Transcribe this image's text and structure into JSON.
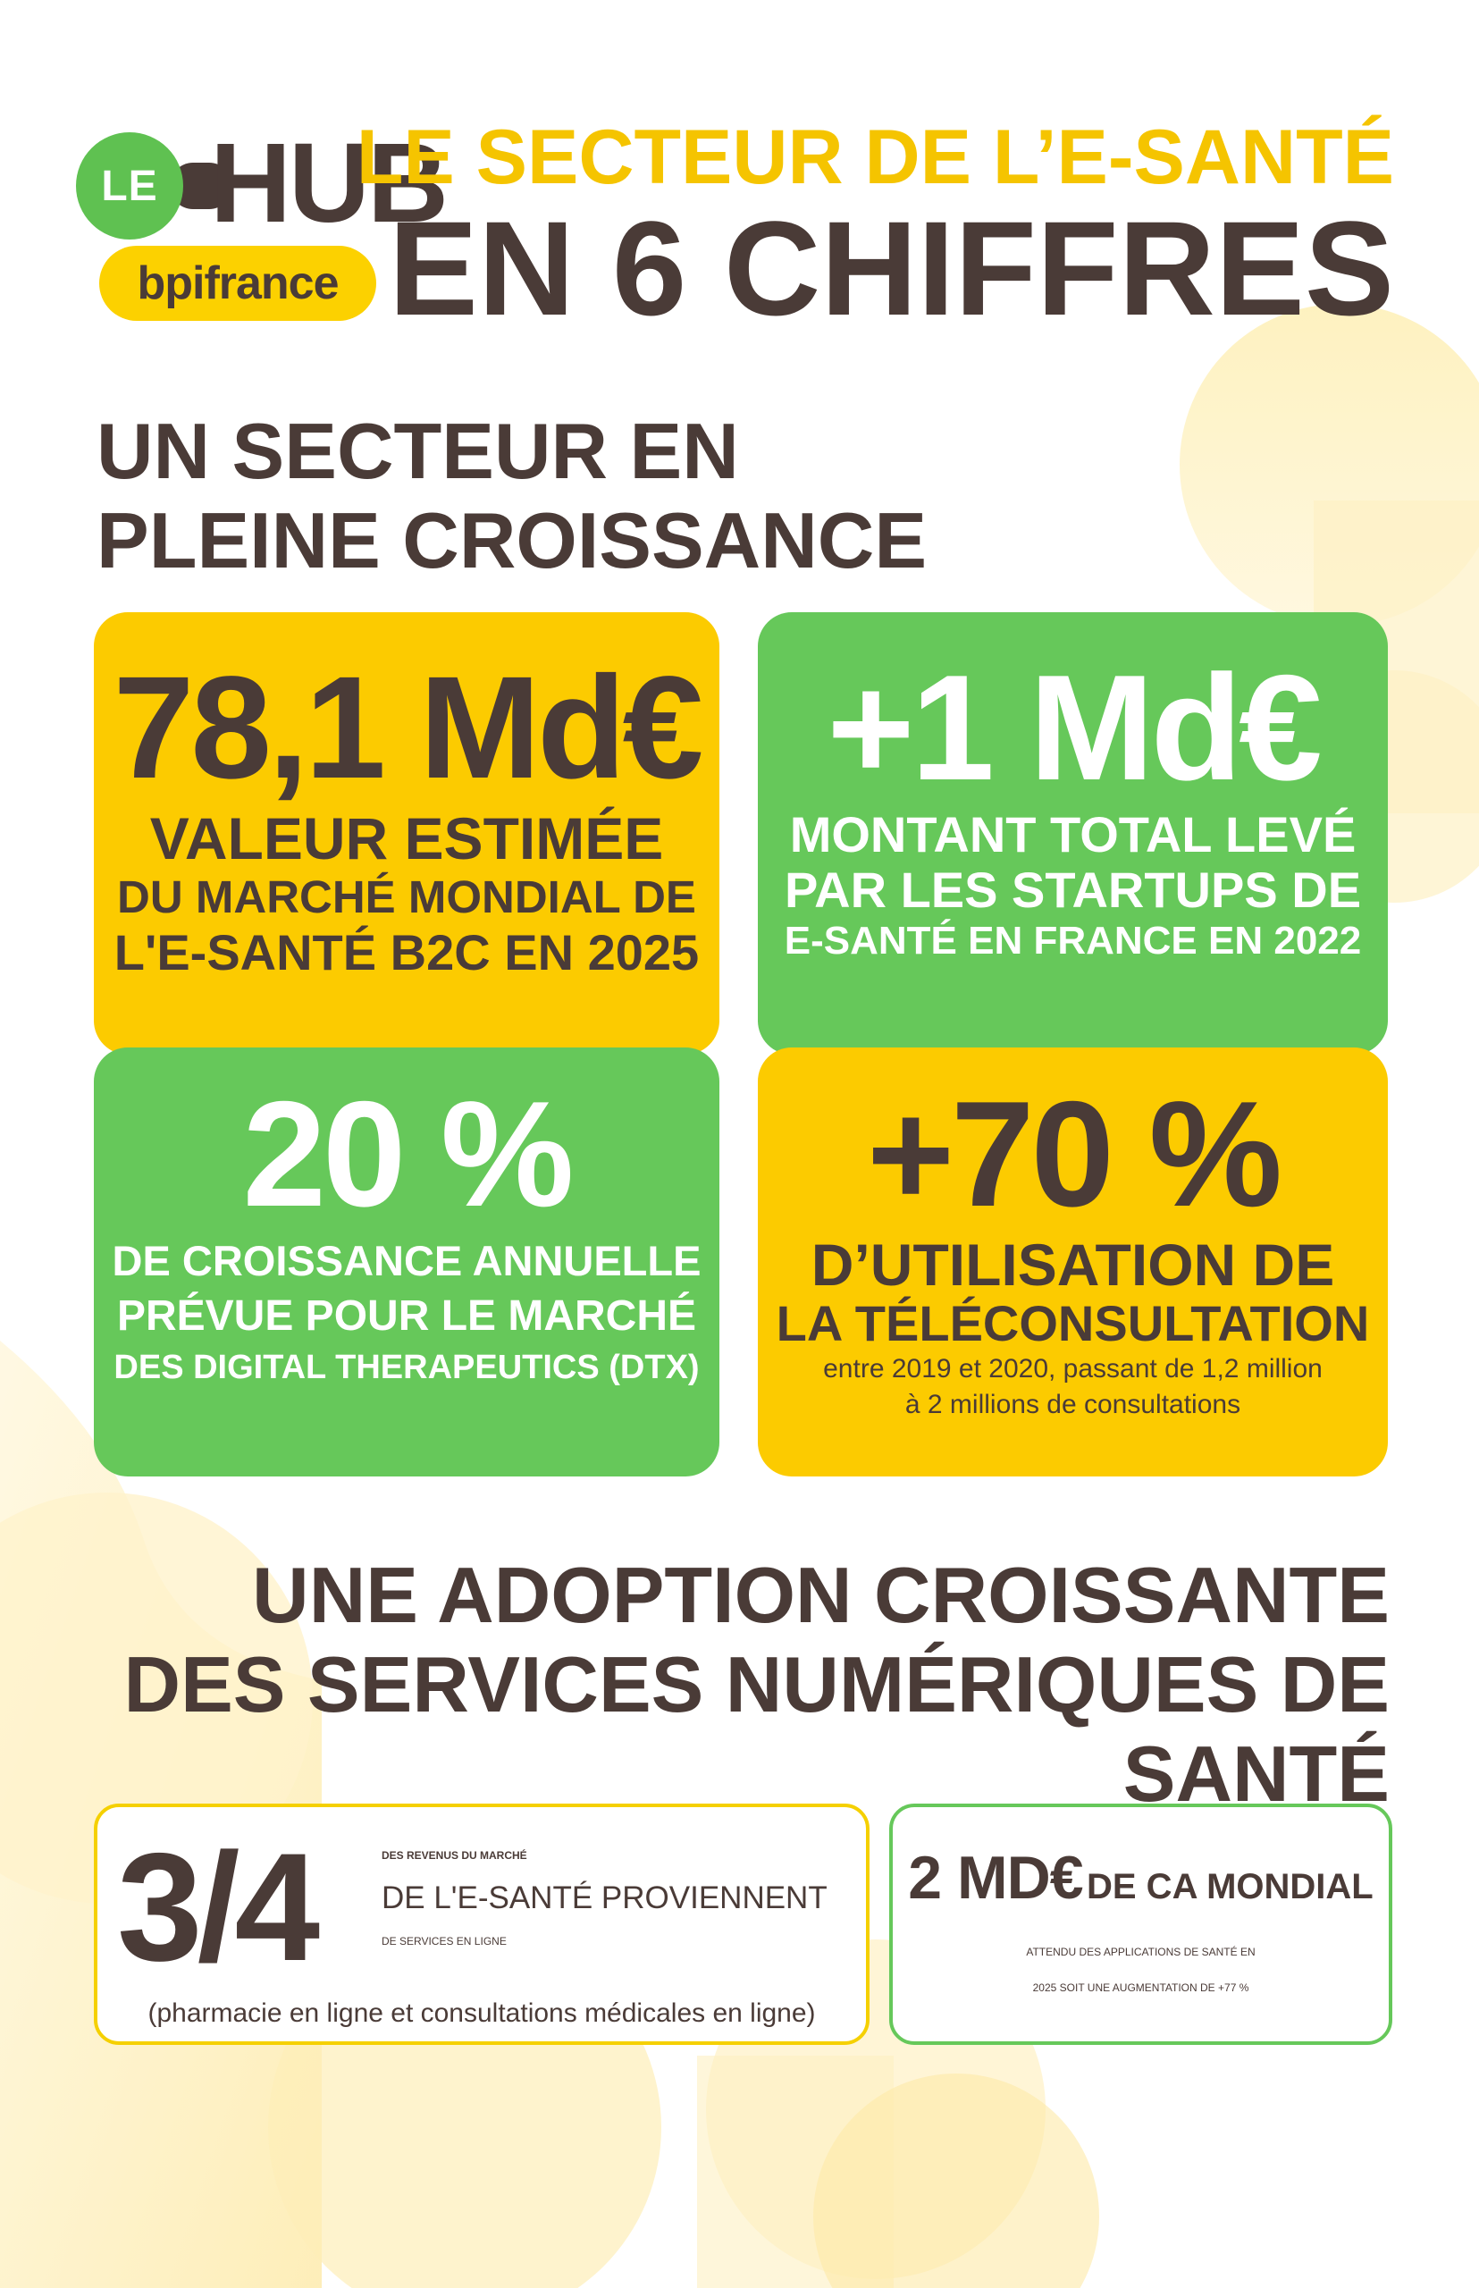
{
  "logo": {
    "le": "LE",
    "hub": "HUB",
    "bpifrance": "bpifrance"
  },
  "title": {
    "top": "LE SECTEUR DE L’E-SANTÉ",
    "main": "EN 6 CHIFFRES"
  },
  "section1": {
    "line1": "UN SECTEUR EN",
    "line2": "PLEINE CROISSANCE"
  },
  "cards": [
    {
      "big": "78,1 Md€",
      "line1": "VALEUR ESTIMÉE",
      "line2": "DU MARCHÉ MONDIAL DE",
      "line3": "L'E-SANTÉ B2C EN 2025"
    },
    {
      "big": "+1 Md€",
      "line1": "MONTANT TOTAL LEVÉ",
      "line2": "PAR LES STARTUPS DE",
      "line3": "E-SANTÉ EN FRANCE EN 2022"
    },
    {
      "big": "20 %",
      "line1": "DE CROISSANCE ANNUELLE",
      "line2": "PRÉVUE POUR LE MARCHÉ",
      "line3": "DES DIGITAL THERAPEUTICS (DTX)"
    },
    {
      "big": "+70 %",
      "line1": "D’UTILISATION DE",
      "line2": "LA TÉLÉCONSULTATION",
      "note1": "entre 2019 et 2020, passant de 1,2 million",
      "note2": "à 2 millions de consultations"
    }
  ],
  "section2": {
    "line1": "UNE ADOPTION CROISSANTE",
    "line2": "DES SERVICES NUMÉRIQUES DE SANTÉ"
  },
  "box1": {
    "fraction": "3/4",
    "line1": "DES REVENUS DU MARCHÉ",
    "line2": "DE L'E-SANTÉ PROVIENNENT",
    "line3": "DE SERVICES EN LIGNE",
    "note": "(pharmacie en ligne et consultations médicales en ligne)"
  },
  "box2": {
    "big": "2 MD€",
    "rest": "DE CA MONDIAL",
    "line1": "ATTENDU DES APPLICATIONS DE SANTÉ EN",
    "line2": "2025 SOIT UNE AUGMENTATION DE +77 %"
  },
  "colors": {
    "yellow": "#fccb00",
    "green": "#66c85a",
    "brown": "#4a3b37",
    "title_yellow": "#f5c400"
  }
}
